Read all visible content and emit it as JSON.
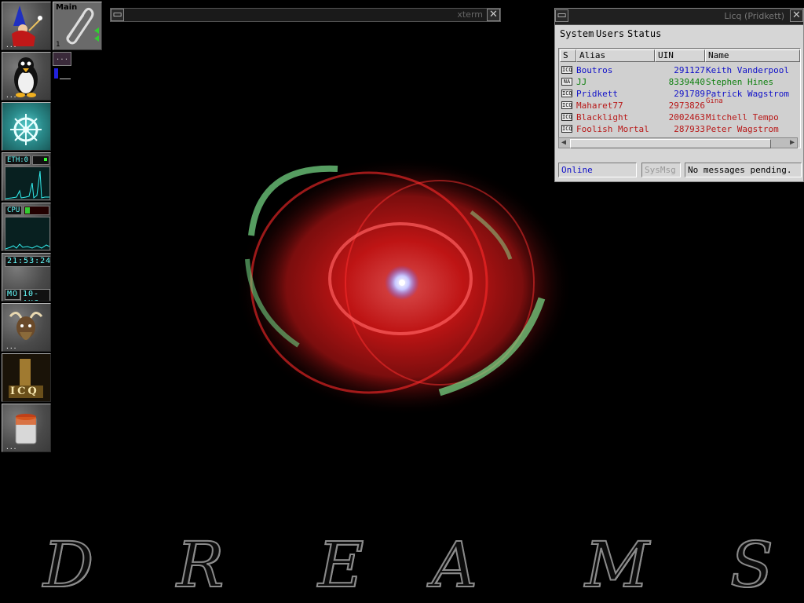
{
  "desktop": {
    "background_word": [
      "D",
      "R",
      "E",
      "A",
      "M",
      "S"
    ]
  },
  "dock": {
    "wizard_dots": "...",
    "penguin_dots": "...",
    "eth_label": "ETH:0",
    "cpu_label": "CPU",
    "clock_time": "21:53:24",
    "clock_day": "MO",
    "clock_date": "10-AUG",
    "gnu_dots": "...",
    "icq_label": "ICQ",
    "paint_dots": "..."
  },
  "pager": {
    "title": "Main",
    "desk_number": "1",
    "mini_label": "..."
  },
  "xterm": {
    "title": "xterm",
    "close": "✕",
    "menu": "▭"
  },
  "licq": {
    "title": "Licq (Pridkett)",
    "close": "✕",
    "menu": "▭",
    "menus": [
      "System",
      "Users",
      "Status"
    ],
    "columns": {
      "status": "S",
      "alias": "Alias",
      "uin": "UIN",
      "name": "Name"
    },
    "contacts": [
      {
        "icon": "ICQ",
        "alias": "Boutros",
        "uin": "291127",
        "name": "Keith Vanderpool",
        "color": "#1010c8"
      },
      {
        "icon": "NA",
        "alias": "JJ",
        "uin": "8339440",
        "name": "Stephen Hines",
        "color": "#118011"
      },
      {
        "icon": "ICQ",
        "alias": "Pridkett",
        "uin": "291789",
        "name": "Patrick Wagstrom",
        "color": "#1010c8"
      },
      {
        "icon": "ICQ",
        "alias": "Maharet77",
        "uin": "2973826",
        "name": "Gina",
        "color": "#b81818"
      },
      {
        "icon": "ICQ",
        "alias": "Blacklight",
        "uin": "2002463",
        "name": "Mitchell Tempo",
        "color": "#b81818"
      },
      {
        "icon": "ICQ",
        "alias": "Foolish Mortal",
        "uin": "287933",
        "name": "Peter Wagstrom",
        "color": "#b81818"
      }
    ],
    "status_online": "Online",
    "sysmsg": "SysMsg",
    "messages": "No messages pending."
  }
}
